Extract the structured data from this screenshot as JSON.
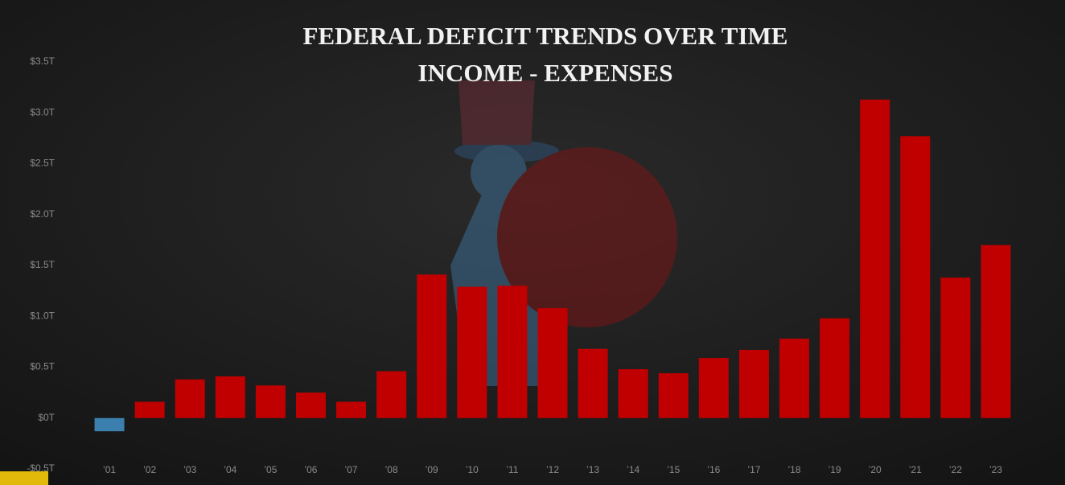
{
  "chart_data": {
    "type": "bar",
    "title": "FEDERAL DEFICIT TRENDS OVER TIME",
    "subtitle": "INCOME - EXPENSES",
    "categories": [
      "’01",
      "’02",
      "’03",
      "’04",
      "’05",
      "’06",
      "’07",
      "’08",
      "’09",
      "’10",
      "’11",
      "’12",
      "’13",
      "’14",
      "’15",
      "’16",
      "’17",
      "’18",
      "’19",
      "’20",
      "’21",
      "’22",
      "’23"
    ],
    "values": [
      -0.13,
      0.16,
      0.38,
      0.41,
      0.32,
      0.25,
      0.16,
      0.46,
      1.41,
      1.29,
      1.3,
      1.08,
      0.68,
      0.48,
      0.44,
      0.59,
      0.67,
      0.78,
      0.98,
      3.13,
      2.77,
      1.38,
      1.7
    ],
    "color": "#c00000",
    "negative_color": "#3b7fae",
    "ylim": [
      -0.5,
      3.5
    ],
    "yticks": [
      {
        "value": -0.5,
        "label": "-$0.5T"
      },
      {
        "value": 0,
        "label": "$0T"
      },
      {
        "value": 0.5,
        "label": "$0.5T"
      },
      {
        "value": 1,
        "label": "$1.0T"
      },
      {
        "value": 1.5,
        "label": "$1.5T"
      },
      {
        "value": 2,
        "label": "$2.0T"
      },
      {
        "value": 2.5,
        "label": "$2.5T"
      },
      {
        "value": 3,
        "label": "$3.0T"
      },
      {
        "value": 3.5,
        "label": "$3.5T"
      }
    ],
    "grid": false
  }
}
